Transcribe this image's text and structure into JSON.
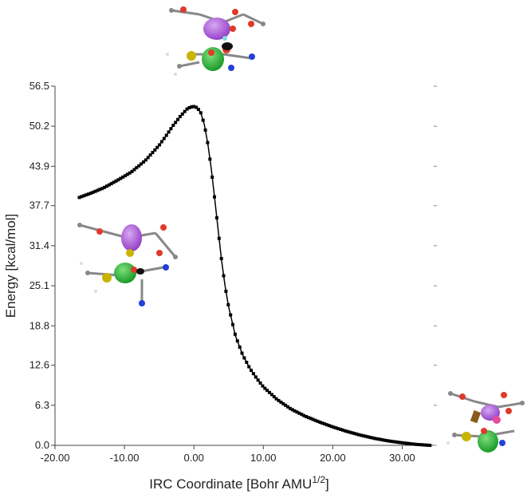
{
  "chart_data": {
    "type": "scatter",
    "title": "",
    "xlabel": "IRC Coordinate [Bohr AMU",
    "xlabel_sup": "1/2",
    "xlabel_end": "]",
    "ylabel": "Energy [kcal/mol]",
    "xlim": [
      -20,
      35
    ],
    "ylim": [
      0,
      56.5
    ],
    "xticks": [
      "-20.00",
      "-10.00",
      "0.00",
      "10.00",
      "20.00",
      "30.00"
    ],
    "xtick_values": [
      -20,
      -10,
      0,
      10,
      20,
      30
    ],
    "yticks": [
      "0.0",
      "6.3",
      "12.6",
      "18.8",
      "25.1",
      "31.4",
      "37.7",
      "43.9",
      "50.2",
      "56.5"
    ],
    "ytick_values": [
      0,
      6.3,
      12.6,
      18.8,
      25.1,
      31.4,
      37.7,
      43.9,
      50.2,
      56.5
    ],
    "series": [
      {
        "name": "IRC",
        "x": [
          -16.5,
          -15,
          -13,
          -11,
          -9,
          -7,
          -5,
          -4,
          -3,
          -2,
          -1,
          -0.5,
          0,
          0.5,
          1,
          1.5,
          2,
          2.5,
          3,
          3.5,
          4,
          4.5,
          5,
          6,
          7,
          8,
          9,
          10,
          12,
          14,
          16,
          18,
          20,
          22,
          24,
          26,
          28,
          30,
          32,
          34
        ],
        "values": [
          39.0,
          39.6,
          40.5,
          41.7,
          43.0,
          44.8,
          47.2,
          48.7,
          50.3,
          51.7,
          52.9,
          53.2,
          53.3,
          53.1,
          52.3,
          50.5,
          47.5,
          43.5,
          38.8,
          33.8,
          29.0,
          25.0,
          21.8,
          17.2,
          14.3,
          12.2,
          10.6,
          9.2,
          7.2,
          5.7,
          4.6,
          3.7,
          2.9,
          2.2,
          1.6,
          1.1,
          0.7,
          0.4,
          0.15,
          0.0
        ]
      }
    ]
  }
}
